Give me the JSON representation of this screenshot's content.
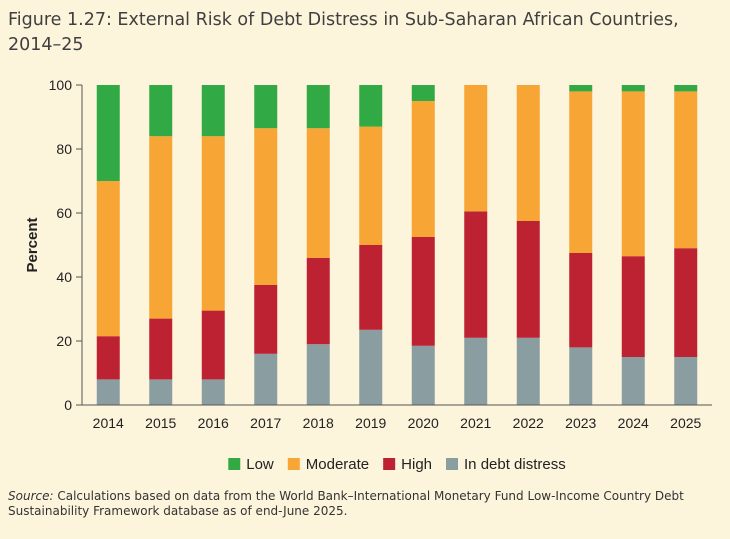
{
  "figure": {
    "title": "Figure 1.27: External Risk of Debt Distress in Sub-Saharan African Countries, 2014–25",
    "source_label": "Source:",
    "source_text": " Calculations based on data from the World Bank–International Monetary Fund Low-Income Country Debt Sustainability Framework database as of end-June 2025."
  },
  "chart_data": {
    "type": "bar",
    "stacked": true,
    "categories": [
      "2014",
      "2015",
      "2016",
      "2017",
      "2018",
      "2019",
      "2020",
      "2021",
      "2022",
      "2023",
      "2024",
      "2025"
    ],
    "ylabel": "Percent",
    "xlabel": "",
    "ylim": [
      0,
      100
    ],
    "yticks": [
      0,
      20,
      40,
      60,
      80,
      100
    ],
    "grid": false,
    "legend": "bottom",
    "series": [
      {
        "name": "In debt distress",
        "color": "#8a9ea2",
        "values": [
          8,
          8,
          8,
          16,
          19,
          23.5,
          18.5,
          21,
          21,
          18,
          15,
          15
        ]
      },
      {
        "name": "High",
        "color": "#bd2232",
        "values": [
          13.5,
          19,
          21.5,
          21.5,
          27,
          26.5,
          34,
          39.5,
          36.5,
          29.5,
          31.5,
          34
        ]
      },
      {
        "name": "Moderate",
        "color": "#f7a535",
        "values": [
          48.5,
          57,
          54.5,
          49,
          40.5,
          37,
          42.5,
          39.5,
          42.5,
          50.5,
          51.5,
          49
        ]
      },
      {
        "name": "Low",
        "color": "#31a944",
        "values": [
          30,
          16,
          16,
          13.5,
          13.5,
          13,
          5,
          0,
          0,
          2,
          2,
          2
        ]
      }
    ],
    "legend_order": [
      "Low",
      "Moderate",
      "High",
      "In debt distress"
    ]
  }
}
